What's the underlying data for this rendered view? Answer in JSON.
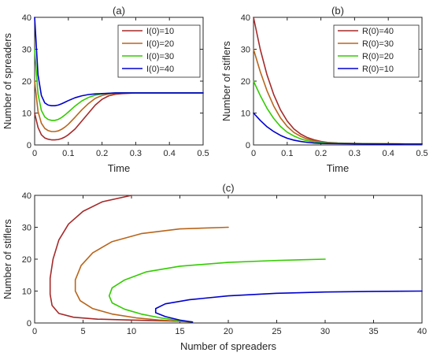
{
  "chart_data": [
    {
      "id": "a",
      "type": "line",
      "title": "(a)",
      "xlabel": "Time",
      "ylabel": "Number of spreaders",
      "xlim": [
        0,
        0.5
      ],
      "ylim": [
        0,
        40
      ],
      "xticks": [
        0,
        0.1,
        0.2,
        0.3,
        0.4,
        0.5
      ],
      "xtick_labels": [
        "0",
        "0.1",
        "0.2",
        "0.3",
        "0.4",
        "0.5"
      ],
      "yticks": [
        0,
        10,
        20,
        30,
        40
      ],
      "ytick_labels": [
        "0",
        "10",
        "20",
        "30",
        "40"
      ],
      "legend_position": "top-right",
      "series": [
        {
          "name": "I(0)=10",
          "color": "#A52A2A",
          "x": [
            0,
            0.01,
            0.02,
            0.03,
            0.04,
            0.05,
            0.06,
            0.07,
            0.08,
            0.09,
            0.1,
            0.12,
            0.14,
            0.16,
            0.18,
            0.2,
            0.22,
            0.24,
            0.26,
            0.28,
            0.3,
            0.35,
            0.4,
            0.45,
            0.5
          ],
          "y": [
            10,
            5.5,
            3.2,
            2.2,
            1.8,
            1.6,
            1.6,
            1.7,
            2,
            2.5,
            3.2,
            5,
            7.5,
            10,
            12.5,
            14.3,
            15.4,
            15.9,
            16.1,
            16.2,
            16.3,
            16.3,
            16.3,
            16.3,
            16.3
          ]
        },
        {
          "name": "I(0)=20",
          "color": "#B8651B",
          "x": [
            0,
            0.01,
            0.02,
            0.03,
            0.04,
            0.05,
            0.06,
            0.07,
            0.08,
            0.09,
            0.1,
            0.12,
            0.14,
            0.16,
            0.18,
            0.2,
            0.22,
            0.24,
            0.26,
            0.28,
            0.3,
            0.35,
            0.4,
            0.45,
            0.5
          ],
          "y": [
            20,
            10.5,
            6.8,
            5.2,
            4.5,
            4.2,
            4.2,
            4.4,
            4.9,
            5.6,
            6.5,
            8.7,
            11,
            13,
            14.6,
            15.5,
            16,
            16.2,
            16.3,
            16.3,
            16.3,
            16.3,
            16.3,
            16.3,
            16.3
          ]
        },
        {
          "name": "I(0)=30",
          "color": "#33CC00",
          "x": [
            0,
            0.01,
            0.02,
            0.03,
            0.04,
            0.05,
            0.06,
            0.07,
            0.08,
            0.09,
            0.1,
            0.12,
            0.14,
            0.16,
            0.18,
            0.2,
            0.22,
            0.24,
            0.26,
            0.28,
            0.3,
            0.35,
            0.4,
            0.45,
            0.5
          ],
          "y": [
            30,
            16,
            10.8,
            8.8,
            8,
            7.7,
            7.7,
            8,
            8.6,
            9.4,
            10.3,
            12.2,
            13.8,
            14.9,
            15.6,
            16,
            16.2,
            16.3,
            16.3,
            16.3,
            16.3,
            16.3,
            16.3,
            16.3,
            16.3
          ]
        },
        {
          "name": "I(0)=40",
          "color": "#0000CC",
          "x": [
            0,
            0.01,
            0.02,
            0.03,
            0.04,
            0.05,
            0.06,
            0.07,
            0.08,
            0.09,
            0.1,
            0.12,
            0.14,
            0.16,
            0.18,
            0.2,
            0.22,
            0.24,
            0.26,
            0.28,
            0.3,
            0.35,
            0.4,
            0.45,
            0.5
          ],
          "y": [
            40,
            22,
            15.5,
            13.2,
            12.5,
            12.3,
            12.3,
            12.5,
            12.9,
            13.4,
            13.9,
            14.8,
            15.4,
            15.8,
            16,
            16.1,
            16.2,
            16.3,
            16.3,
            16.3,
            16.3,
            16.3,
            16.3,
            16.3,
            16.3
          ]
        }
      ]
    },
    {
      "id": "b",
      "type": "line",
      "title": "(b)",
      "xlabel": "Time",
      "ylabel": "Number of stiflers",
      "xlim": [
        0,
        0.5
      ],
      "ylim": [
        0,
        40
      ],
      "xticks": [
        0,
        0.1,
        0.2,
        0.3,
        0.4,
        0.5
      ],
      "xtick_labels": [
        "0",
        "0.1",
        "0.2",
        "0.3",
        "0.4",
        "0.5"
      ],
      "yticks": [
        0,
        10,
        20,
        30,
        40
      ],
      "ytick_labels": [
        "0",
        "10",
        "20",
        "30",
        "40"
      ],
      "legend_position": "top-right",
      "series": [
        {
          "name": "R(0)=40",
          "color": "#A52A2A",
          "x": [
            0,
            0.02,
            0.04,
            0.06,
            0.08,
            0.1,
            0.12,
            0.14,
            0.16,
            0.18,
            0.2,
            0.22,
            0.25,
            0.3,
            0.35,
            0.4,
            0.45,
            0.5
          ],
          "y": [
            40,
            30,
            22,
            15.8,
            11,
            7.5,
            5,
            3.4,
            2.3,
            1.6,
            1.1,
            0.8,
            0.6,
            0.45,
            0.4,
            0.35,
            0.3,
            0.3
          ]
        },
        {
          "name": "R(0)=30",
          "color": "#B8651B",
          "x": [
            0,
            0.02,
            0.04,
            0.06,
            0.08,
            0.1,
            0.12,
            0.14,
            0.16,
            0.18,
            0.2,
            0.22,
            0.25,
            0.3,
            0.35,
            0.4,
            0.45,
            0.5
          ],
          "y": [
            30,
            23,
            17,
            12.2,
            8.5,
            5.8,
            3.9,
            2.7,
            1.8,
            1.3,
            0.9,
            0.7,
            0.55,
            0.45,
            0.4,
            0.35,
            0.3,
            0.3
          ]
        },
        {
          "name": "R(0)=20",
          "color": "#33CC00",
          "x": [
            0,
            0.02,
            0.04,
            0.06,
            0.08,
            0.1,
            0.12,
            0.14,
            0.16,
            0.18,
            0.2,
            0.22,
            0.25,
            0.3,
            0.35,
            0.4,
            0.45,
            0.5
          ],
          "y": [
            20,
            15.5,
            11.5,
            8.3,
            5.8,
            4,
            2.8,
            1.9,
            1.3,
            1,
            0.75,
            0.6,
            0.5,
            0.4,
            0.35,
            0.32,
            0.3,
            0.3
          ]
        },
        {
          "name": "R(0)=10",
          "color": "#0000CC",
          "x": [
            0,
            0.02,
            0.04,
            0.06,
            0.08,
            0.1,
            0.12,
            0.14,
            0.16,
            0.18,
            0.2,
            0.22,
            0.25,
            0.3,
            0.35,
            0.4,
            0.45,
            0.5
          ],
          "y": [
            10,
            7.7,
            5.7,
            4.2,
            3,
            2.1,
            1.5,
            1.1,
            0.8,
            0.6,
            0.5,
            0.45,
            0.4,
            0.35,
            0.32,
            0.3,
            0.3,
            0.3
          ]
        }
      ]
    },
    {
      "id": "c",
      "type": "line",
      "title": "(c)",
      "xlabel": "Number of spreaders",
      "ylabel": "Number of stiflers",
      "xlim": [
        0,
        40
      ],
      "ylim": [
        0,
        40
      ],
      "xticks": [
        0,
        5,
        10,
        15,
        20,
        25,
        30,
        35,
        40
      ],
      "xtick_labels": [
        "0",
        "5",
        "10",
        "15",
        "20",
        "25",
        "30",
        "35",
        "40"
      ],
      "yticks": [
        0,
        10,
        20,
        30,
        40
      ],
      "ytick_labels": [
        "0",
        "10",
        "20",
        "30",
        "40"
      ],
      "series": [
        {
          "color": "#A52A2A",
          "x": [
            10,
            7,
            5,
            3.5,
            2.5,
            1.9,
            1.6,
            1.6,
            1.8,
            2.5,
            4,
            6.5,
            10,
            13,
            15.5,
            16.3
          ],
          "y": [
            40,
            38,
            35,
            31,
            26,
            20,
            14,
            9,
            5.5,
            3,
            1.8,
            1.2,
            0.9,
            0.7,
            0.5,
            0.3
          ]
        },
        {
          "color": "#B8651B",
          "x": [
            20,
            15,
            11,
            8,
            6,
            4.8,
            4.2,
            4.2,
            4.7,
            6,
            8,
            10.5,
            13,
            15,
            16.3
          ],
          "y": [
            30,
            29.5,
            28,
            25.5,
            22,
            18,
            13.5,
            10,
            7,
            4.5,
            2.8,
            1.6,
            0.9,
            0.5,
            0.3
          ]
        },
        {
          "color": "#33CC00",
          "x": [
            30,
            25,
            20,
            15,
            11.5,
            9.3,
            8,
            7.7,
            8,
            9.3,
            11,
            13,
            14.8,
            16.3
          ],
          "y": [
            20,
            19.6,
            19,
            17.8,
            16,
            13.5,
            11,
            8.5,
            6.3,
            4.3,
            2.8,
            1.6,
            0.8,
            0.3
          ]
        },
        {
          "color": "#0000CC",
          "x": [
            40,
            35,
            30,
            25,
            20,
            16,
            13.5,
            12.5,
            12.5,
            13.5,
            15,
            16.3
          ],
          "y": [
            10,
            9.9,
            9.7,
            9.3,
            8.5,
            7.3,
            6,
            4.5,
            3.2,
            2,
            0.9,
            0.3
          ]
        }
      ]
    }
  ]
}
